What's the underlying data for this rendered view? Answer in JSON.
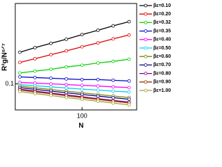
{
  "chart_data": {
    "type": "line",
    "xlabel": "N",
    "ylabel": "R²g/N⁶ᐟ⁷",
    "x": [
      16,
      25,
      40,
      63,
      100,
      160,
      250,
      400
    ],
    "xlog": true,
    "ylog": true,
    "xlim": [
      14,
      500
    ],
    "ylim": [
      0.07,
      0.3
    ],
    "xticks": [
      100
    ],
    "yticks": [
      0.1
    ],
    "series": [
      {
        "name": "βε=0.10",
        "color": "#000000",
        "values": [
          0.154,
          0.164,
          0.174,
          0.184,
          0.196,
          0.208,
          0.221,
          0.234
        ]
      },
      {
        "name": "βε=0.20",
        "color": "#e00000",
        "values": [
          0.134,
          0.141,
          0.149,
          0.157,
          0.166,
          0.175,
          0.185,
          0.195
        ]
      },
      {
        "name": "βε=0.32",
        "color": "#00d000",
        "values": [
          0.116,
          0.119,
          0.122,
          0.126,
          0.129,
          0.133,
          0.136,
          0.14
        ]
      },
      {
        "name": "βε=0.35",
        "color": "#0000d0",
        "values": [
          0.11,
          0.109,
          0.108,
          0.107,
          0.106,
          0.106,
          0.105,
          0.104
        ]
      },
      {
        "name": "βε=0.40",
        "color": "#ff00ff",
        "values": [
          0.102,
          0.101,
          0.1,
          0.099,
          0.098,
          0.097,
          0.096,
          0.095
        ]
      },
      {
        "name": "βε=0.50",
        "color": "#00d0f0",
        "values": [
          0.099,
          0.0975,
          0.096,
          0.0945,
          0.093,
          0.0918,
          0.0905,
          0.0895
        ]
      },
      {
        "name": "βε=0.60",
        "color": "#808000",
        "values": [
          0.097,
          0.0948,
          0.0926,
          0.0905,
          0.0885,
          0.0865,
          0.0847,
          0.083
        ]
      },
      {
        "name": "βε=0.70",
        "color": "#000080",
        "values": [
          0.095,
          0.0928,
          0.0906,
          0.0885,
          0.0865,
          0.0846,
          0.0828,
          0.081
        ]
      },
      {
        "name": "βε=0.80",
        "color": "#800080",
        "values": [
          0.093,
          0.0906,
          0.0883,
          0.086,
          0.0838,
          0.0817,
          0.0798,
          0.078
        ]
      },
      {
        "name": "βε=0.90",
        "color": "#993300",
        "values": [
          0.092,
          0.0896,
          0.0873,
          0.085,
          0.0829,
          0.0808,
          0.0789,
          0.077
        ]
      },
      {
        "name": "βε=1.00",
        "color": "#a0a030",
        "values": [
          0.09,
          0.0876,
          0.0853,
          0.083,
          0.0809,
          0.0789,
          0.0769,
          0.075
        ]
      }
    ]
  }
}
